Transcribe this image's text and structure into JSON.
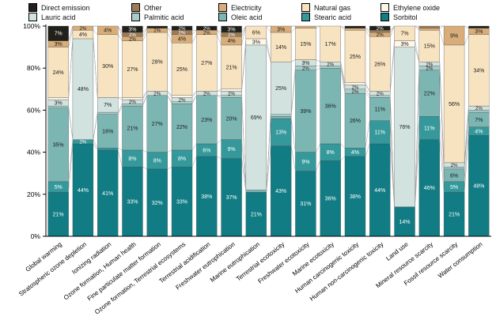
{
  "y_axis": {
    "ticks": [
      {
        "value": 0,
        "label": "0%"
      },
      {
        "value": 20,
        "label": "20%"
      },
      {
        "value": 40,
        "label": "40%"
      },
      {
        "value": 60,
        "label": "60%"
      },
      {
        "value": 80,
        "label": "80%"
      },
      {
        "value": 100,
        "label": "100%"
      }
    ]
  },
  "chart_data": {
    "type": "bar",
    "stacked": true,
    "percent_stacked": true,
    "ylim": [
      0,
      100
    ],
    "grid": false,
    "legend_position": "top",
    "legend_rows": [
      [
        "Direct emission",
        "Other",
        "Electricity",
        "Natural gas",
        "Ethylene oxide"
      ],
      [
        "Lauric acid",
        "Palmitic acid",
        "Oleic acid",
        "Stearic acid",
        "Sorbitol"
      ]
    ],
    "categories": [
      "Global warming",
      "Stratospheric ozone depletion",
      "Ionizing radiation",
      "Ozone formation, Human health",
      "Fine particulate matter formation",
      "Ozone formation, Terrestrial ecosystems",
      "Terrestrial acidification",
      "Freshwater eutrophication",
      "Marine eutrophication",
      "Terrestrial ecotoxicity",
      "Freshwater ecotoxicity",
      "Marine ecotoxicity",
      "Human carcinogenic toxicity",
      "Human non-carcinogenic toxicity",
      "Land use",
      "Mineral resource scarcity",
      "Fossil resource scarcity",
      "Water consumption"
    ],
    "series": [
      {
        "name": "Sorbitol",
        "color": "#117c84",
        "label_color": "#ffffff",
        "values": [
          21,
          44,
          41,
          33,
          32,
          33,
          38,
          37,
          21,
          43,
          31,
          36,
          38,
          44,
          14,
          46,
          21,
          48
        ]
      },
      {
        "name": "Stearic acid",
        "color": "#35989b",
        "label_color": "#ffffff",
        "values": [
          5,
          2,
          1,
          8,
          8,
          8,
          6,
          9,
          0,
          13,
          9,
          8,
          4,
          11,
          0,
          11,
          5,
          4
        ]
      },
      {
        "name": "Oleic acid",
        "color": "#7cb6b3",
        "label_color": "#1a1a1a",
        "values": [
          35,
          0,
          16,
          21,
          27,
          22,
          23,
          20,
          1,
          1,
          39,
          36,
          26,
          11,
          0,
          22,
          6,
          7
        ]
      },
      {
        "name": "Palmitic acid",
        "color": "#a8cdc9",
        "label_color": "#1a1a1a",
        "values": [
          1,
          0,
          1,
          1,
          0,
          1,
          0,
          1,
          0,
          1,
          2,
          1,
          2,
          1,
          0,
          2,
          1,
          1
        ]
      },
      {
        "name": "Lauric acid",
        "color": "#d2e3df",
        "label_color": "#1a1a1a",
        "values": [
          3,
          48,
          7,
          2,
          2,
          2,
          2,
          2,
          69,
          25,
          3,
          2,
          2,
          2,
          76,
          2,
          2,
          2
        ]
      },
      {
        "name": "Ethylene oxide",
        "color": "#fdf7ea",
        "label_color": "#1a1a1a",
        "values": [
          1,
          0,
          0,
          1,
          0,
          1,
          0,
          1,
          3,
          0,
          0,
          0,
          1,
          0,
          3,
          0,
          0,
          0
        ]
      },
      {
        "name": "Natural gas",
        "color": "#f8e3c0",
        "label_color": "#1a1a1a",
        "values": [
          24,
          4,
          30,
          27,
          28,
          25,
          27,
          21,
          6,
          14,
          15,
          17,
          25,
          26,
          7,
          15,
          56,
          34
        ]
      },
      {
        "name": "Electricity",
        "color": "#d8ad79",
        "label_color": "#1a1a1a",
        "values": [
          3,
          2,
          4,
          2,
          2,
          4,
          2,
          4,
          0,
          3,
          1,
          0,
          1,
          2,
          0,
          1,
          9,
          3
        ]
      },
      {
        "name": "Other",
        "color": "#9c7c57",
        "label_color": "#ffffff",
        "values": [
          0,
          0,
          0,
          2,
          0,
          2,
          0,
          2,
          0,
          0,
          0,
          0,
          0,
          1,
          0,
          1,
          0,
          0
        ]
      },
      {
        "name": "Direct emission",
        "color": "#21201a",
        "label_color": "#ffffff",
        "values": [
          7,
          0,
          0,
          3,
          1,
          2,
          2,
          3,
          0,
          0,
          0,
          0,
          1,
          2,
          0,
          0,
          0,
          1
        ]
      }
    ],
    "label_rule": "segments >= 2% show their percentage value"
  }
}
